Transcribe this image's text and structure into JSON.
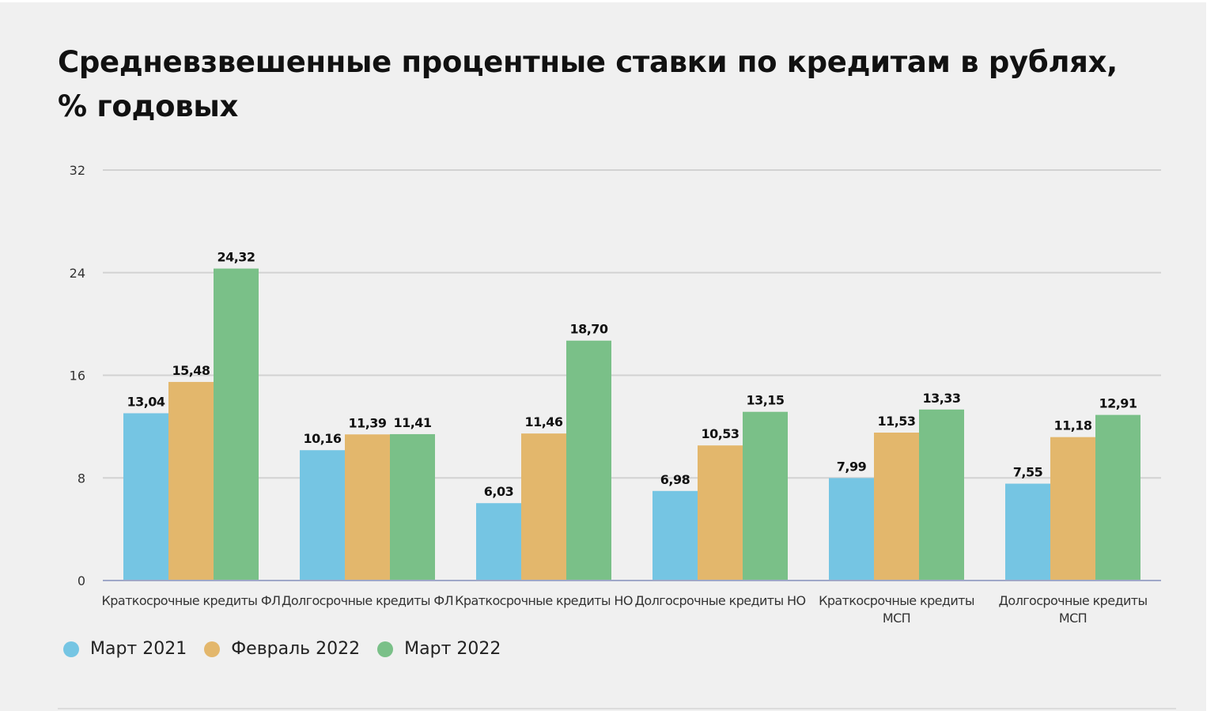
{
  "chart_data": {
    "type": "bar",
    "title": "Средневзвешенные процентные ставки по кредитам в рублях, % годовых",
    "categories": [
      [
        "Краткосрочные кредиты ФЛ"
      ],
      [
        "Долгосрочные кредиты ФЛ"
      ],
      [
        "Краткосрочные кредиты НО"
      ],
      [
        "Долгосрочные кредиты НО"
      ],
      [
        "Краткосрочные кредиты",
        "МСП"
      ],
      [
        "Долгосрочные кредиты",
        "МСП"
      ]
    ],
    "series": [
      {
        "name": "Март 2021",
        "color": "#75c5e3",
        "values": [
          13.04,
          10.16,
          6.03,
          6.98,
          7.99,
          7.55
        ],
        "labels": [
          "13,04",
          "10,16",
          "6,03",
          "6,98",
          "7,99",
          "7,55"
        ]
      },
      {
        "name": "Февраль 2022",
        "color": "#e3b76c",
        "values": [
          15.48,
          11.39,
          11.46,
          10.53,
          11.53,
          11.18
        ],
        "labels": [
          "15,48",
          "11,39",
          "11,46",
          "10,53",
          "11,53",
          "11,18"
        ]
      },
      {
        "name": "Март 2022",
        "color": "#7ac088",
        "values": [
          24.32,
          11.41,
          18.7,
          13.15,
          13.33,
          12.91
        ],
        "labels": [
          "24,32",
          "11,41",
          "18,70",
          "13,15",
          "13,33",
          "12,91"
        ]
      }
    ],
    "yticks": [
      "0",
      "8",
      "16",
      "24",
      "32"
    ],
    "ytick_values": [
      0,
      8,
      16,
      24,
      32
    ],
    "ylim": [
      0,
      32
    ],
    "xlabel": "",
    "ylabel": "",
    "grid": true,
    "legend": "bottom-left"
  }
}
